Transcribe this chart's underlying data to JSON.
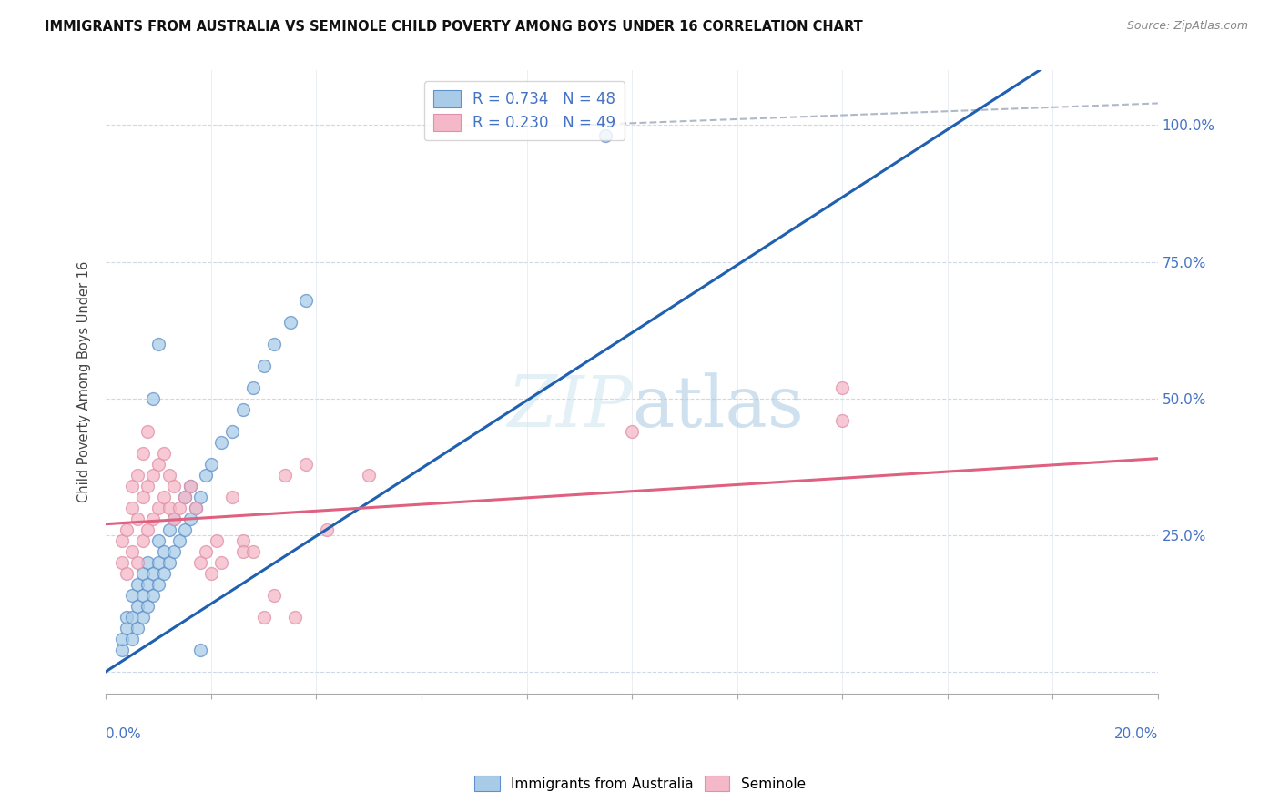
{
  "title": "IMMIGRANTS FROM AUSTRALIA VS SEMINOLE CHILD POVERTY AMONG BOYS UNDER 16 CORRELATION CHART",
  "source": "Source: ZipAtlas.com",
  "ylabel": "Child Poverty Among Boys Under 16",
  "blue_R": 0.734,
  "blue_N": 48,
  "pink_R": 0.23,
  "pink_N": 49,
  "blue_label": "Immigrants from Australia",
  "pink_label": "Seminole",
  "blue_color": "#a8cce8",
  "pink_color": "#f4b8c8",
  "blue_line_color": "#2060b0",
  "pink_line_color": "#e06080",
  "blue_edge_color": "#6090c8",
  "pink_edge_color": "#e090a8",
  "blue_scatter": [
    [
      0.0003,
      0.04
    ],
    [
      0.0003,
      0.06
    ],
    [
      0.0004,
      0.08
    ],
    [
      0.0004,
      0.1
    ],
    [
      0.0005,
      0.06
    ],
    [
      0.0005,
      0.1
    ],
    [
      0.0005,
      0.14
    ],
    [
      0.0006,
      0.08
    ],
    [
      0.0006,
      0.12
    ],
    [
      0.0006,
      0.16
    ],
    [
      0.0007,
      0.1
    ],
    [
      0.0007,
      0.14
    ],
    [
      0.0007,
      0.18
    ],
    [
      0.0008,
      0.12
    ],
    [
      0.0008,
      0.16
    ],
    [
      0.0008,
      0.2
    ],
    [
      0.0009,
      0.14
    ],
    [
      0.0009,
      0.18
    ],
    [
      0.001,
      0.16
    ],
    [
      0.001,
      0.2
    ],
    [
      0.001,
      0.24
    ],
    [
      0.0011,
      0.18
    ],
    [
      0.0011,
      0.22
    ],
    [
      0.0012,
      0.2
    ],
    [
      0.0012,
      0.26
    ],
    [
      0.0013,
      0.22
    ],
    [
      0.0013,
      0.28
    ],
    [
      0.0014,
      0.24
    ],
    [
      0.0015,
      0.26
    ],
    [
      0.0015,
      0.32
    ],
    [
      0.0016,
      0.28
    ],
    [
      0.0016,
      0.34
    ],
    [
      0.0017,
      0.3
    ],
    [
      0.0018,
      0.32
    ],
    [
      0.0019,
      0.36
    ],
    [
      0.002,
      0.38
    ],
    [
      0.0022,
      0.42
    ],
    [
      0.0024,
      0.44
    ],
    [
      0.0026,
      0.48
    ],
    [
      0.0028,
      0.52
    ],
    [
      0.003,
      0.56
    ],
    [
      0.0032,
      0.6
    ],
    [
      0.0035,
      0.64
    ],
    [
      0.0038,
      0.68
    ],
    [
      0.0009,
      0.5
    ],
    [
      0.001,
      0.6
    ],
    [
      0.0095,
      0.98
    ],
    [
      0.0018,
      0.04
    ]
  ],
  "pink_scatter": [
    [
      0.0003,
      0.2
    ],
    [
      0.0003,
      0.24
    ],
    [
      0.0004,
      0.18
    ],
    [
      0.0004,
      0.26
    ],
    [
      0.0005,
      0.22
    ],
    [
      0.0005,
      0.3
    ],
    [
      0.0005,
      0.34
    ],
    [
      0.0006,
      0.2
    ],
    [
      0.0006,
      0.28
    ],
    [
      0.0006,
      0.36
    ],
    [
      0.0007,
      0.24
    ],
    [
      0.0007,
      0.32
    ],
    [
      0.0007,
      0.4
    ],
    [
      0.0008,
      0.26
    ],
    [
      0.0008,
      0.34
    ],
    [
      0.0008,
      0.44
    ],
    [
      0.0009,
      0.28
    ],
    [
      0.0009,
      0.36
    ],
    [
      0.001,
      0.3
    ],
    [
      0.001,
      0.38
    ],
    [
      0.0011,
      0.32
    ],
    [
      0.0011,
      0.4
    ],
    [
      0.0012,
      0.3
    ],
    [
      0.0012,
      0.36
    ],
    [
      0.0013,
      0.28
    ],
    [
      0.0013,
      0.34
    ],
    [
      0.0014,
      0.3
    ],
    [
      0.0015,
      0.32
    ],
    [
      0.0016,
      0.34
    ],
    [
      0.0017,
      0.3
    ],
    [
      0.0018,
      0.2
    ],
    [
      0.0019,
      0.22
    ],
    [
      0.002,
      0.18
    ],
    [
      0.0021,
      0.24
    ],
    [
      0.0022,
      0.2
    ],
    [
      0.0024,
      0.32
    ],
    [
      0.0026,
      0.24
    ],
    [
      0.0026,
      0.22
    ],
    [
      0.0028,
      0.22
    ],
    [
      0.003,
      0.1
    ],
    [
      0.0032,
      0.14
    ],
    [
      0.0034,
      0.36
    ],
    [
      0.0036,
      0.1
    ],
    [
      0.0038,
      0.38
    ],
    [
      0.0042,
      0.26
    ],
    [
      0.005,
      0.36
    ],
    [
      0.01,
      0.44
    ],
    [
      0.014,
      0.46
    ],
    [
      0.014,
      0.52
    ]
  ],
  "blue_line": [
    [
      0.0,
      0.0
    ],
    [
      0.02,
      0.92
    ]
  ],
  "pink_line": [
    [
      0.0,
      0.27
    ],
    [
      0.02,
      0.39
    ]
  ],
  "gray_dash_line": [
    [
      0.09,
      1.02
    ],
    [
      0.2,
      1.02
    ]
  ],
  "xlim": [
    0.0,
    0.02
  ],
  "ylim": [
    -0.04,
    1.1
  ],
  "yticks": [
    0.0,
    0.25,
    0.5,
    0.75,
    1.0
  ],
  "ytick_labels_right": [
    "",
    "25.0%",
    "50.0%",
    "75.0%",
    "100.0%"
  ]
}
